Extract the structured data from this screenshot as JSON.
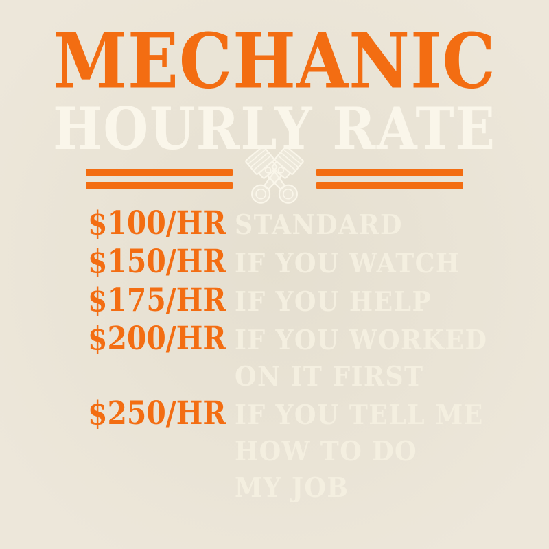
{
  "design": {
    "title": "MECHANIC",
    "subtitle": "HOURLY RATE",
    "icon": "crossed-pistons-icon"
  },
  "colors": {
    "orange": "#f36d12",
    "cream_text": "#faf6ea",
    "label_text": "#f4efe0",
    "background": "#ede7da"
  },
  "rates": [
    {
      "price": "$100/HR",
      "label_lines": [
        "STANDARD"
      ]
    },
    {
      "price": "$150/HR",
      "label_lines": [
        "IF YOU WATCH"
      ]
    },
    {
      "price": "$175/HR",
      "label_lines": [
        "IF YOU HELP"
      ]
    },
    {
      "price": "$200/HR",
      "label_lines": [
        "IF YOU WORKED",
        "ON IT FIRST"
      ]
    },
    {
      "price": "$250/HR",
      "label_lines": [
        "IF YOU TELL ME",
        "HOW TO DO",
        "MY JOB"
      ]
    }
  ]
}
